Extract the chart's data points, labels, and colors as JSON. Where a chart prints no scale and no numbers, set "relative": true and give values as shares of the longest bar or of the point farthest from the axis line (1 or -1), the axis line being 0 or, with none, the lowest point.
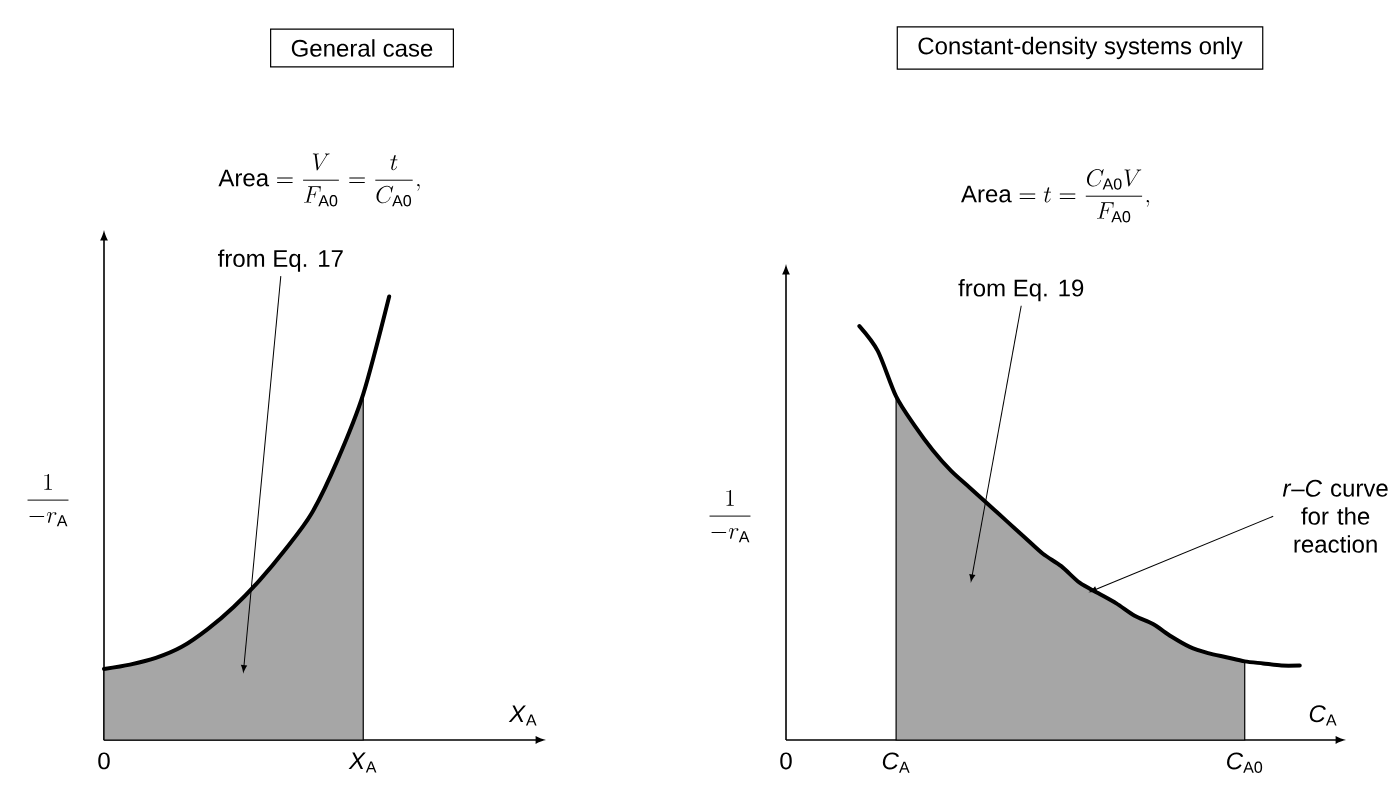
{
  "chart_data": [
    {
      "type": "line",
      "title": "General case",
      "xlabel": "*X*$_{A}$",
      "ylabel": "\\frac{1}{-r_{\\mathrm{A}}}",
      "relative": true,
      "tick_labels": "x",
      "annotations": [
        "\\text{Area} = \\frac{V}{F_{\\mathrm{A0}}} = \\frac{t}{C_{\\mathrm{A0}}},",
        "from Eq. 17"
      ],
      "categories": [
        "0",
        null,
        null,
        null,
        null,
        null,
        null,
        null,
        null,
        null,
        "*X*$_{A}$",
        null
      ],
      "series": [
        {
          "type": "area",
          "color": "#a6a6a6",
          "values": [
            0.16,
            0.17,
            0.185,
            0.21,
            0.25,
            0.3,
            0.36,
            0.43,
            0.51,
            0.63,
            0.78,
            null
          ]
        },
        {
          "type": "line",
          "color": "#000000",
          "values": [
            0.16,
            0.17,
            0.185,
            0.21,
            0.25,
            0.3,
            0.36,
            0.43,
            0.51,
            0.63,
            0.78,
            1.0
          ]
        }
      ]
    },
    {
      "type": "line",
      "title": "Constant-density systems only",
      "xlabel": "*C*$_{A}$",
      "ylabel": "\\frac{1}{-r_{\\mathrm{A}}}",
      "relative": true,
      "tick_labels": "x",
      "annotations": [
        "\\text{Area} = t = \\frac{C_{\\mathrm{A0}}V}{F_{\\mathrm{A0}}},",
        "from Eq. 19",
        "*r*–*C* curve for the reaction"
      ],
      "categories": [
        "0",
        null,
        null,
        null,
        null,
        null,
        "*C*$_{A}$",
        null,
        null,
        null,
        null,
        null,
        null,
        null,
        null,
        null,
        null,
        null,
        null,
        null,
        null,
        null,
        null,
        null,
        null,
        "*C*$_{A0}$",
        null,
        null,
        null
      ],
      "series": [
        {
          "type": "area",
          "color": "#a6a6a6",
          "values": [
            null,
            null,
            null,
            null,
            null,
            null,
            0.83,
            0.76,
            0.7,
            0.65,
            0.61,
            0.57,
            0.53,
            0.49,
            0.45,
            0.42,
            0.38,
            0.355,
            0.33,
            0.3,
            0.28,
            0.25,
            0.225,
            0.21,
            0.2,
            0.19,
            null,
            null,
            null
          ]
        },
        {
          "type": "line",
          "color": "#000000",
          "values": [
            null,
            null,
            null,
            null,
            1.0,
            0.94,
            0.83,
            0.76,
            0.7,
            0.65,
            0.61,
            0.57,
            0.53,
            0.49,
            0.45,
            0.42,
            0.38,
            0.355,
            0.33,
            0.3,
            0.28,
            0.25,
            0.225,
            0.21,
            0.2,
            0.19,
            0.185,
            0.18,
            0.18
          ]
        }
      ]
    }
  ]
}
